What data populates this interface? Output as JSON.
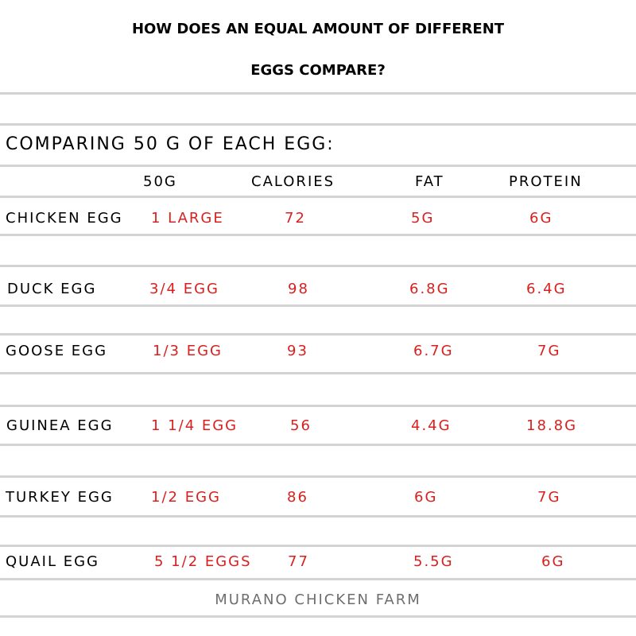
{
  "title_lines": [
    "HOW DOES AN EQUAL AMOUNT OF DIFFERENT",
    "EGGS COMPARE?"
  ],
  "subtitle": "COMPARING 50 G OF EACH EGG:",
  "headers": {
    "amount": "50G",
    "calories": "CALORIES",
    "fat": "FAT",
    "protein": "PROTEIN"
  },
  "rows": [
    {
      "name": "CHICKEN EGG",
      "amount": "1 LARGE",
      "calories": "72",
      "fat": "5G",
      "protein": "6G"
    },
    {
      "name": "DUCK EGG",
      "amount": "3/4 EGG",
      "calories": "98",
      "fat": "6.8G",
      "protein": "6.4G"
    },
    {
      "name": "GOOSE EGG",
      "amount": "1/3 EGG",
      "calories": "93",
      "fat": "6.7G",
      "protein": "7G"
    },
    {
      "name": "GUINEA EGG",
      "amount": "1 1/4 EGG",
      "calories": "56",
      "fat": "4.4G",
      "protein": "18.8G"
    },
    {
      "name": "TURKEY EGG",
      "amount": "1/2 EGG",
      "calories": "86",
      "fat": "6G",
      "protein": "7G"
    },
    {
      "name": "QUAIL EGG",
      "amount": "5 1/2 EGGS",
      "calories": "77",
      "fat": "5.5G",
      "protein": "6G"
    }
  ],
  "footer": "MURANO CHICKEN FARM",
  "colors": {
    "value_text": "#d9201f",
    "rule_lines": "#d3d3d3",
    "footer_text": "#6e6e6e"
  }
}
